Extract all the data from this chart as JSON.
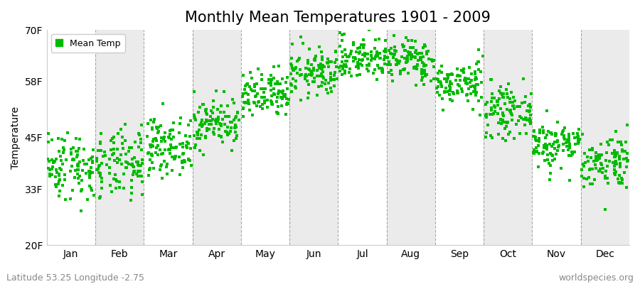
{
  "title": "Monthly Mean Temperatures 1901 - 2009",
  "ylabel": "Temperature",
  "lat_lon_label": "Latitude 53.25 Longitude -2.75",
  "credit": "worldspecies.org",
  "legend_label": "Mean Temp",
  "marker_color": "#00bb00",
  "marker_size": 3,
  "years": 109,
  "start_year": 1901,
  "end_year": 2009,
  "ylim": [
    20,
    70
  ],
  "yticks": [
    20,
    33,
    45,
    58,
    70
  ],
  "ytick_labels": [
    "20F",
    "33F",
    "45F",
    "58F",
    "70F"
  ],
  "months": [
    "Jan",
    "Feb",
    "Mar",
    "Apr",
    "May",
    "Jun",
    "Jul",
    "Aug",
    "Sep",
    "Oct",
    "Nov",
    "Dec"
  ],
  "mean_temps_f": [
    38.5,
    38.5,
    43.0,
    48.5,
    54.5,
    60.0,
    63.5,
    63.0,
    57.5,
    51.0,
    43.5,
    39.5
  ],
  "std_temps_f": [
    4.0,
    4.0,
    3.2,
    2.8,
    2.8,
    2.8,
    2.5,
    2.5,
    2.5,
    2.8,
    2.8,
    3.2
  ],
  "background_colors": [
    "#ffffff",
    "#ebebeb"
  ],
  "grid_color": "#888888",
  "title_fontsize": 15,
  "axis_label_fontsize": 10,
  "tick_label_fontsize": 10,
  "lat_lon_fontsize": 9,
  "credit_fontsize": 9,
  "seed": 42
}
